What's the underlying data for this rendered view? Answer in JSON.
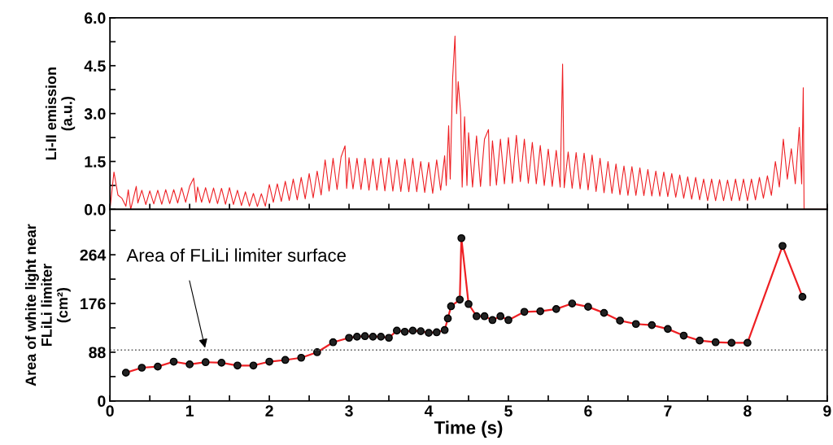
{
  "chart_data": [
    {
      "type": "line",
      "ylabel": "Li-II emission\n(a.u.)",
      "xlim": [
        0,
        9
      ],
      "ylim": [
        0,
        6
      ],
      "xticks": [
        0,
        {
          "value": 0.5,
          "label": null
        },
        1,
        {
          "value": 1.5,
          "label": null
        },
        2,
        {
          "value": 2.5,
          "label": null
        },
        3,
        {
          "value": 3.5,
          "label": null
        },
        4,
        {
          "value": 4.5,
          "label": null
        },
        5,
        {
          "value": 5.5,
          "label": null
        },
        6,
        {
          "value": 6.5,
          "label": null
        },
        7,
        {
          "value": 7.5,
          "label": null
        },
        8,
        {
          "value": 8.5,
          "label": null
        },
        9
      ],
      "yticks": [
        {
          "value": 0,
          "label": "0.0"
        },
        {
          "value": 0.75,
          "label": null
        },
        {
          "value": 1.5,
          "label": "1.5"
        },
        {
          "value": 2.25,
          "label": null
        },
        {
          "value": 3,
          "label": "3.0"
        },
        {
          "value": 3.75,
          "label": null
        },
        {
          "value": 4.5,
          "label": "4.5"
        },
        {
          "value": 5.25,
          "label": null
        },
        {
          "value": 6,
          "label": "6.0"
        }
      ],
      "tick_labels": "y",
      "grid": false,
      "legend": false,
      "marker": "none",
      "line_style": "solid",
      "series": [
        {
          "color": "#ee2024",
          "x": [
            0.0,
            0.05,
            0.1,
            0.15,
            0.2,
            0.23,
            0.26,
            0.33,
            0.35,
            0.4,
            0.45,
            0.5,
            0.55,
            0.6,
            0.65,
            0.7,
            0.75,
            0.8,
            0.85,
            0.9,
            0.95,
            1.0,
            1.05,
            1.08,
            1.1,
            1.15,
            1.2,
            1.25,
            1.3,
            1.35,
            1.4,
            1.45,
            1.5,
            1.55,
            1.6,
            1.65,
            1.7,
            1.75,
            1.8,
            1.85,
            1.9,
            1.95,
            2.0,
            2.05,
            2.1,
            2.15,
            2.2,
            2.25,
            2.3,
            2.35,
            2.4,
            2.45,
            2.5,
            2.55,
            2.6,
            2.65,
            2.7,
            2.75,
            2.8,
            2.85,
            2.9,
            2.95,
            2.97,
            3.0,
            3.05,
            3.1,
            3.15,
            3.2,
            3.25,
            3.3,
            3.35,
            3.4,
            3.45,
            3.5,
            3.55,
            3.6,
            3.65,
            3.7,
            3.75,
            3.8,
            3.85,
            3.9,
            3.95,
            4.0,
            4.05,
            4.1,
            4.15,
            4.2,
            4.22,
            4.25,
            4.27,
            4.3,
            4.33,
            4.35,
            4.37,
            4.4,
            4.42,
            4.45,
            4.48,
            4.5,
            4.55,
            4.6,
            4.65,
            4.7,
            4.75,
            4.77,
            4.8,
            4.85,
            4.9,
            4.95,
            5.0,
            5.05,
            5.1,
            5.15,
            5.2,
            5.25,
            5.3,
            5.35,
            5.4,
            5.45,
            5.5,
            5.55,
            5.6,
            5.65,
            5.68,
            5.7,
            5.75,
            5.8,
            5.85,
            5.9,
            5.95,
            6.0,
            6.05,
            6.1,
            6.15,
            6.2,
            6.25,
            6.3,
            6.35,
            6.4,
            6.45,
            6.5,
            6.55,
            6.6,
            6.65,
            6.7,
            6.75,
            6.8,
            6.85,
            6.9,
            6.95,
            7.0,
            7.05,
            7.1,
            7.15,
            7.2,
            7.25,
            7.3,
            7.35,
            7.4,
            7.45,
            7.5,
            7.55,
            7.6,
            7.65,
            7.7,
            7.75,
            7.8,
            7.85,
            7.9,
            7.95,
            8.0,
            8.05,
            8.1,
            8.15,
            8.2,
            8.25,
            8.3,
            8.35,
            8.4,
            8.45,
            8.5,
            8.55,
            8.6,
            8.65,
            8.68,
            8.7,
            8.71,
            9.0
          ],
          "values": [
            0.0,
            1.17,
            0.45,
            0.35,
            0.1,
            0.61,
            0.0,
            0.72,
            0.2,
            0.6,
            0.15,
            0.58,
            0.17,
            0.6,
            0.16,
            0.62,
            0.18,
            0.62,
            0.2,
            0.68,
            0.22,
            0.72,
            0.98,
            0.23,
            0.7,
            0.22,
            0.68,
            0.2,
            0.67,
            0.18,
            0.66,
            0.16,
            0.68,
            0.15,
            0.6,
            0.12,
            0.55,
            0.1,
            0.5,
            0.09,
            0.49,
            0.1,
            0.78,
            0.22,
            0.8,
            0.25,
            0.88,
            0.28,
            0.95,
            0.3,
            1.0,
            0.33,
            1.12,
            0.36,
            1.2,
            0.45,
            1.55,
            0.57,
            1.6,
            0.62,
            1.64,
            1.99,
            0.66,
            1.62,
            0.64,
            1.6,
            0.62,
            1.6,
            0.6,
            1.58,
            0.6,
            1.6,
            0.58,
            1.62,
            0.57,
            1.55,
            0.56,
            1.58,
            0.55,
            1.6,
            0.55,
            1.5,
            0.53,
            1.47,
            0.5,
            1.55,
            0.6,
            1.68,
            0.75,
            2.62,
            0.95,
            4.1,
            5.43,
            3.0,
            4.0,
            3.04,
            0.7,
            2.9,
            0.75,
            2.4,
            0.7,
            2.3,
            0.72,
            2.2,
            2.5,
            0.74,
            2.15,
            0.76,
            2.2,
            0.8,
            2.25,
            0.82,
            2.32,
            0.87,
            2.2,
            0.82,
            2.1,
            0.8,
            2.0,
            0.75,
            1.89,
            0.72,
            1.85,
            0.7,
            4.55,
            0.68,
            1.8,
            0.66,
            1.78,
            0.64,
            1.76,
            0.61,
            1.7,
            0.56,
            1.6,
            0.52,
            1.5,
            0.5,
            1.42,
            0.46,
            1.36,
            0.44,
            1.34,
            0.44,
            1.3,
            0.43,
            1.25,
            0.42,
            1.2,
            0.41,
            1.17,
            0.4,
            1.12,
            0.38,
            1.08,
            0.35,
            1.02,
            0.32,
            1.0,
            0.3,
            0.95,
            0.27,
            0.95,
            0.27,
            0.93,
            0.27,
            0.92,
            0.27,
            0.95,
            0.27,
            0.95,
            0.27,
            0.95,
            0.3,
            1.0,
            0.35,
            1.05,
            0.44,
            1.5,
            0.7,
            2.2,
            0.95,
            1.9,
            0.8,
            2.57,
            0.8,
            3.81,
            0.0,
            0.0
          ]
        }
      ]
    },
    {
      "type": "line",
      "xlabel": "Time (s)",
      "ylabel": "Area of white light near\nFLiLi limiter\n(cm²)",
      "xlim": [
        0,
        9
      ],
      "ylim": [
        0,
        346
      ],
      "xticks": [
        0,
        {
          "value": 0.5,
          "label": null
        },
        1,
        {
          "value": 1.5,
          "label": null
        },
        2,
        {
          "value": 2.5,
          "label": null
        },
        3,
        {
          "value": 3.5,
          "label": null
        },
        4,
        {
          "value": 4.5,
          "label": null
        },
        5,
        {
          "value": 5.5,
          "label": null
        },
        6,
        {
          "value": 6.5,
          "label": null
        },
        7,
        {
          "value": 7.5,
          "label": null
        },
        8,
        {
          "value": 8.5,
          "label": null
        },
        9
      ],
      "yticks": [
        0,
        {
          "value": 44,
          "label": null
        },
        88,
        {
          "value": 132,
          "label": null
        },
        176,
        {
          "value": 220,
          "label": null
        },
        264,
        {
          "value": 308,
          "label": null
        }
      ],
      "grid": false,
      "legend": false,
      "marker": "circle",
      "line_style": "solid",
      "ref_lines": [
        {
          "axis": "y",
          "value": 92,
          "color": "#555555",
          "line_style": "dotted"
        }
      ],
      "annotations": [
        {
          "text": "Area of FLiLi limiter surface",
          "x": 1.2,
          "y": 92
        }
      ],
      "series": [
        {
          "color": "#ee2024",
          "x": [
            0.2,
            0.4,
            0.6,
            0.8,
            1.0,
            1.2,
            1.4,
            1.6,
            1.8,
            2.0,
            2.2,
            2.4,
            2.6,
            2.8,
            3.0,
            3.1,
            3.2,
            3.3,
            3.4,
            3.5,
            3.6,
            3.7,
            3.8,
            3.9,
            4.0,
            4.1,
            4.2,
            4.24,
            4.28,
            4.39,
            4.41,
            4.5,
            4.6,
            4.7,
            4.8,
            4.9,
            5.0,
            5.2,
            5.4,
            5.6,
            5.8,
            6.0,
            6.2,
            6.4,
            6.6,
            6.8,
            7.0,
            7.2,
            7.4,
            7.6,
            7.8,
            8.0,
            8.44,
            8.69
          ],
          "values": [
            51,
            60,
            62,
            71,
            66,
            70,
            69,
            64,
            64,
            71,
            74,
            78,
            88,
            106,
            114,
            116,
            117,
            116,
            116,
            114,
            127,
            125,
            127,
            126,
            123,
            124,
            128,
            149,
            171,
            183,
            294,
            175,
            153,
            153,
            146,
            153,
            146,
            161,
            162,
            166,
            176,
            170,
            159,
            145,
            139,
            137,
            130,
            118,
            109,
            106,
            105,
            105,
            280,
            188
          ]
        }
      ]
    }
  ]
}
